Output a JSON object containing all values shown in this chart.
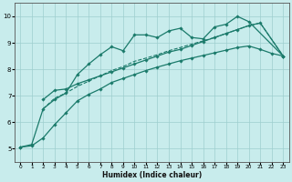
{
  "xlabel": "Humidex (Indice chaleur)",
  "xlim": [
    -0.5,
    23.5
  ],
  "ylim": [
    4.5,
    10.5
  ],
  "yticks": [
    5,
    6,
    7,
    8,
    9,
    10
  ],
  "xticks": [
    0,
    1,
    2,
    3,
    4,
    5,
    6,
    7,
    8,
    9,
    10,
    11,
    12,
    13,
    14,
    15,
    16,
    17,
    18,
    19,
    20,
    21,
    22,
    23
  ],
  "bg_color": "#c8ecec",
  "grid_color": "#9ecece",
  "line_color": "#1a7a6a",
  "series": {
    "line1_x": [
      0,
      1,
      2,
      3,
      4,
      5,
      6,
      7,
      8,
      9,
      10,
      11,
      12,
      13,
      14,
      15,
      16,
      17,
      18,
      19,
      20,
      23
    ],
    "line1_y": [
      5.05,
      5.15,
      6.5,
      6.85,
      7.1,
      7.8,
      8.2,
      8.55,
      8.85,
      8.7,
      9.3,
      9.3,
      9.2,
      9.45,
      9.55,
      9.2,
      9.15,
      9.6,
      9.7,
      10.0,
      9.8,
      8.5
    ],
    "line2_x": [
      2,
      3,
      4,
      5,
      6,
      7,
      8,
      9,
      10,
      11,
      12,
      13,
      14,
      15,
      16,
      17,
      18,
      19,
      20,
      21,
      23
    ],
    "line2_y": [
      6.85,
      7.2,
      7.25,
      7.45,
      7.6,
      7.75,
      7.9,
      8.05,
      8.2,
      8.35,
      8.5,
      8.65,
      8.75,
      8.9,
      9.05,
      9.2,
      9.35,
      9.5,
      9.65,
      9.75,
      8.5
    ],
    "line3_x": [
      2,
      3,
      4,
      5,
      6,
      7,
      8,
      9,
      10,
      11,
      12,
      13,
      14,
      15,
      16,
      17,
      18,
      19,
      20,
      21,
      23
    ],
    "line3_y": [
      6.5,
      6.9,
      7.1,
      7.35,
      7.55,
      7.75,
      7.95,
      8.1,
      8.3,
      8.42,
      8.55,
      8.7,
      8.82,
      8.95,
      9.07,
      9.2,
      9.35,
      9.5,
      9.65,
      9.75,
      8.5
    ],
    "line4_x": [
      0,
      1,
      2,
      3,
      4,
      5,
      6,
      7,
      8,
      9,
      10,
      11,
      12,
      13,
      14,
      15,
      16,
      17,
      18,
      19,
      20,
      21,
      22,
      23
    ],
    "line4_y": [
      5.05,
      5.1,
      5.4,
      5.9,
      6.35,
      6.8,
      7.05,
      7.25,
      7.5,
      7.65,
      7.8,
      7.95,
      8.08,
      8.2,
      8.32,
      8.42,
      8.52,
      8.62,
      8.72,
      8.82,
      8.88,
      8.75,
      8.6,
      8.5
    ]
  }
}
